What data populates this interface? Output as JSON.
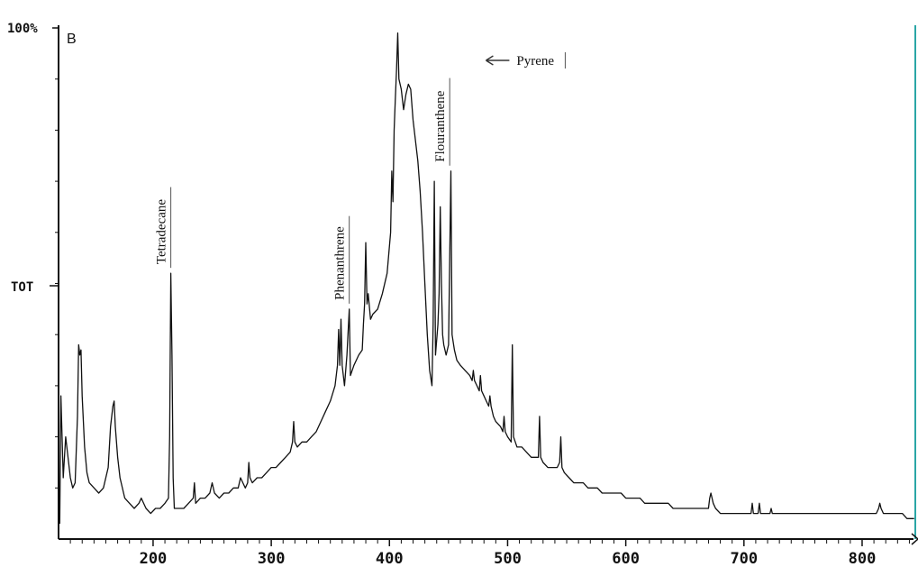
{
  "chart_data": {
    "type": "line",
    "panel_label": "B",
    "y_top_label": "100%",
    "y_mid_label": "TOT",
    "xlim": [
      120,
      845
    ],
    "ylim": [
      0,
      100
    ],
    "x_ticks": [
      200,
      300,
      400,
      500,
      600,
      700,
      800
    ],
    "grid": false,
    "series": [
      {
        "color": "#111111",
        "points": [
          [
            121,
            3
          ],
          [
            122,
            28
          ],
          [
            124,
            12
          ],
          [
            126,
            20
          ],
          [
            128,
            16
          ],
          [
            130,
            12
          ],
          [
            132,
            10
          ],
          [
            134,
            11
          ],
          [
            136,
            24
          ],
          [
            137,
            38
          ],
          [
            138,
            36
          ],
          [
            139,
            37
          ],
          [
            140,
            28
          ],
          [
            142,
            18
          ],
          [
            144,
            13
          ],
          [
            146,
            11
          ],
          [
            150,
            10
          ],
          [
            154,
            9
          ],
          [
            158,
            10
          ],
          [
            162,
            14
          ],
          [
            164,
            22
          ],
          [
            166,
            26
          ],
          [
            167,
            27
          ],
          [
            168,
            22
          ],
          [
            170,
            16
          ],
          [
            172,
            12
          ],
          [
            176,
            8
          ],
          [
            180,
            7
          ],
          [
            184,
            6
          ],
          [
            188,
            7
          ],
          [
            190,
            8
          ],
          [
            194,
            6
          ],
          [
            198,
            5
          ],
          [
            202,
            6
          ],
          [
            206,
            6
          ],
          [
            210,
            7
          ],
          [
            213,
            8
          ],
          [
            214,
            20
          ],
          [
            215,
            52
          ],
          [
            216,
            36
          ],
          [
            217,
            12
          ],
          [
            218,
            6
          ],
          [
            222,
            6
          ],
          [
            226,
            6
          ],
          [
            230,
            7
          ],
          [
            234,
            8
          ],
          [
            235,
            11
          ],
          [
            236,
            7
          ],
          [
            240,
            8
          ],
          [
            244,
            8
          ],
          [
            248,
            9
          ],
          [
            250,
            11
          ],
          [
            252,
            9
          ],
          [
            256,
            8
          ],
          [
            260,
            9
          ],
          [
            264,
            9
          ],
          [
            268,
            10
          ],
          [
            272,
            10
          ],
          [
            274,
            12
          ],
          [
            276,
            11
          ],
          [
            278,
            10
          ],
          [
            280,
            11
          ],
          [
            281,
            15
          ],
          [
            282,
            12
          ],
          [
            284,
            11
          ],
          [
            288,
            12
          ],
          [
            292,
            12
          ],
          [
            296,
            13
          ],
          [
            300,
            14
          ],
          [
            304,
            14
          ],
          [
            308,
            15
          ],
          [
            312,
            16
          ],
          [
            316,
            17
          ],
          [
            318,
            19
          ],
          [
            319,
            23
          ],
          [
            320,
            19
          ],
          [
            322,
            18
          ],
          [
            326,
            19
          ],
          [
            330,
            19
          ],
          [
            334,
            20
          ],
          [
            338,
            21
          ],
          [
            342,
            23
          ],
          [
            346,
            25
          ],
          [
            350,
            27
          ],
          [
            354,
            30
          ],
          [
            356,
            34
          ],
          [
            357,
            41
          ],
          [
            358,
            34
          ],
          [
            359,
            43
          ],
          [
            360,
            34
          ],
          [
            362,
            30
          ],
          [
            364,
            36
          ],
          [
            366,
            45
          ],
          [
            367,
            32
          ],
          [
            370,
            34
          ],
          [
            374,
            36
          ],
          [
            377,
            37
          ],
          [
            378,
            42
          ],
          [
            379,
            46
          ],
          [
            380,
            58
          ],
          [
            381,
            46
          ],
          [
            382,
            48
          ],
          [
            384,
            43
          ],
          [
            386,
            44
          ],
          [
            390,
            45
          ],
          [
            394,
            48
          ],
          [
            398,
            52
          ],
          [
            401,
            60
          ],
          [
            402,
            72
          ],
          [
            403,
            66
          ],
          [
            404,
            80
          ],
          [
            405,
            86
          ],
          [
            406,
            92
          ],
          [
            407,
            99
          ],
          [
            408,
            90
          ],
          [
            410,
            88
          ],
          [
            412,
            84
          ],
          [
            414,
            87
          ],
          [
            416,
            89
          ],
          [
            418,
            88
          ],
          [
            420,
            82
          ],
          [
            424,
            74
          ],
          [
            426,
            68
          ],
          [
            428,
            60
          ],
          [
            430,
            50
          ],
          [
            432,
            40
          ],
          [
            434,
            33
          ],
          [
            436,
            30
          ],
          [
            437,
            42
          ],
          [
            438,
            70
          ],
          [
            439,
            36
          ],
          [
            441,
            42
          ],
          [
            442,
            48
          ],
          [
            443,
            65
          ],
          [
            444,
            50
          ],
          [
            445,
            40
          ],
          [
            446,
            38
          ],
          [
            448,
            36
          ],
          [
            450,
            38
          ],
          [
            451,
            55
          ],
          [
            452,
            72
          ],
          [
            453,
            40
          ],
          [
            455,
            37
          ],
          [
            457,
            35
          ],
          [
            460,
            34
          ],
          [
            464,
            33
          ],
          [
            468,
            32
          ],
          [
            470,
            31
          ],
          [
            471,
            33
          ],
          [
            472,
            31
          ],
          [
            474,
            30
          ],
          [
            476,
            29
          ],
          [
            477,
            32
          ],
          [
            478,
            29
          ],
          [
            480,
            28
          ],
          [
            482,
            27
          ],
          [
            484,
            26
          ],
          [
            485,
            28
          ],
          [
            486,
            26
          ],
          [
            488,
            24
          ],
          [
            490,
            23
          ],
          [
            494,
            22
          ],
          [
            496,
            21
          ],
          [
            497,
            24
          ],
          [
            498,
            21
          ],
          [
            500,
            20
          ],
          [
            503,
            19
          ],
          [
            504,
            38
          ],
          [
            505,
            20
          ],
          [
            508,
            18
          ],
          [
            512,
            18
          ],
          [
            516,
            17
          ],
          [
            520,
            16
          ],
          [
            524,
            16
          ],
          [
            526,
            16
          ],
          [
            527,
            24
          ],
          [
            528,
            16
          ],
          [
            530,
            15
          ],
          [
            534,
            14
          ],
          [
            538,
            14
          ],
          [
            542,
            14
          ],
          [
            544,
            15
          ],
          [
            545,
            20
          ],
          [
            546,
            14
          ],
          [
            548,
            13
          ],
          [
            552,
            12
          ],
          [
            556,
            11
          ],
          [
            560,
            11
          ],
          [
            564,
            11
          ],
          [
            568,
            10
          ],
          [
            572,
            10
          ],
          [
            576,
            10
          ],
          [
            580,
            9
          ],
          [
            584,
            9
          ],
          [
            588,
            9
          ],
          [
            592,
            9
          ],
          [
            596,
            9
          ],
          [
            600,
            8
          ],
          [
            604,
            8
          ],
          [
            608,
            8
          ],
          [
            612,
            8
          ],
          [
            616,
            7
          ],
          [
            620,
            7
          ],
          [
            624,
            7
          ],
          [
            628,
            7
          ],
          [
            632,
            7
          ],
          [
            636,
            7
          ],
          [
            640,
            6
          ],
          [
            644,
            6
          ],
          [
            648,
            6
          ],
          [
            652,
            6
          ],
          [
            656,
            6
          ],
          [
            660,
            6
          ],
          [
            664,
            6
          ],
          [
            668,
            6
          ],
          [
            670,
            6
          ],
          [
            671,
            8
          ],
          [
            672,
            9
          ],
          [
            673,
            8
          ],
          [
            674,
            7
          ],
          [
            676,
            6
          ],
          [
            680,
            5
          ],
          [
            684,
            5
          ],
          [
            688,
            5
          ],
          [
            692,
            5
          ],
          [
            696,
            5
          ],
          [
            700,
            5
          ],
          [
            704,
            5
          ],
          [
            706,
            5
          ],
          [
            707,
            7
          ],
          [
            708,
            5
          ],
          [
            710,
            5
          ],
          [
            712,
            5
          ],
          [
            713,
            7
          ],
          [
            714,
            5
          ],
          [
            716,
            5
          ],
          [
            720,
            5
          ],
          [
            722,
            5
          ],
          [
            723,
            6
          ],
          [
            724,
            5
          ],
          [
            728,
            5
          ],
          [
            732,
            5
          ],
          [
            736,
            5
          ],
          [
            740,
            5
          ],
          [
            744,
            5
          ],
          [
            748,
            5
          ],
          [
            752,
            5
          ],
          [
            756,
            5
          ],
          [
            760,
            5
          ],
          [
            764,
            5
          ],
          [
            768,
            5
          ],
          [
            772,
            5
          ],
          [
            776,
            5
          ],
          [
            780,
            5
          ],
          [
            784,
            5
          ],
          [
            788,
            5
          ],
          [
            792,
            5
          ],
          [
            796,
            5
          ],
          [
            800,
            5
          ],
          [
            804,
            5
          ],
          [
            808,
            5
          ],
          [
            812,
            5
          ],
          [
            814,
            6
          ],
          [
            815,
            7
          ],
          [
            816,
            6
          ],
          [
            818,
            5
          ],
          [
            822,
            5
          ],
          [
            826,
            5
          ],
          [
            830,
            5
          ],
          [
            834,
            5
          ],
          [
            838,
            4
          ],
          [
            842,
            4
          ],
          [
            844,
            4
          ]
        ]
      }
    ],
    "annotations": [
      {
        "text": "Tetradecane",
        "x": 215
      },
      {
        "text": "Phenanthrene",
        "x": 366
      },
      {
        "text": "Flouranthene",
        "x": 451
      },
      {
        "text": "Pyrene",
        "x": 471,
        "arrow": true
      }
    ]
  }
}
